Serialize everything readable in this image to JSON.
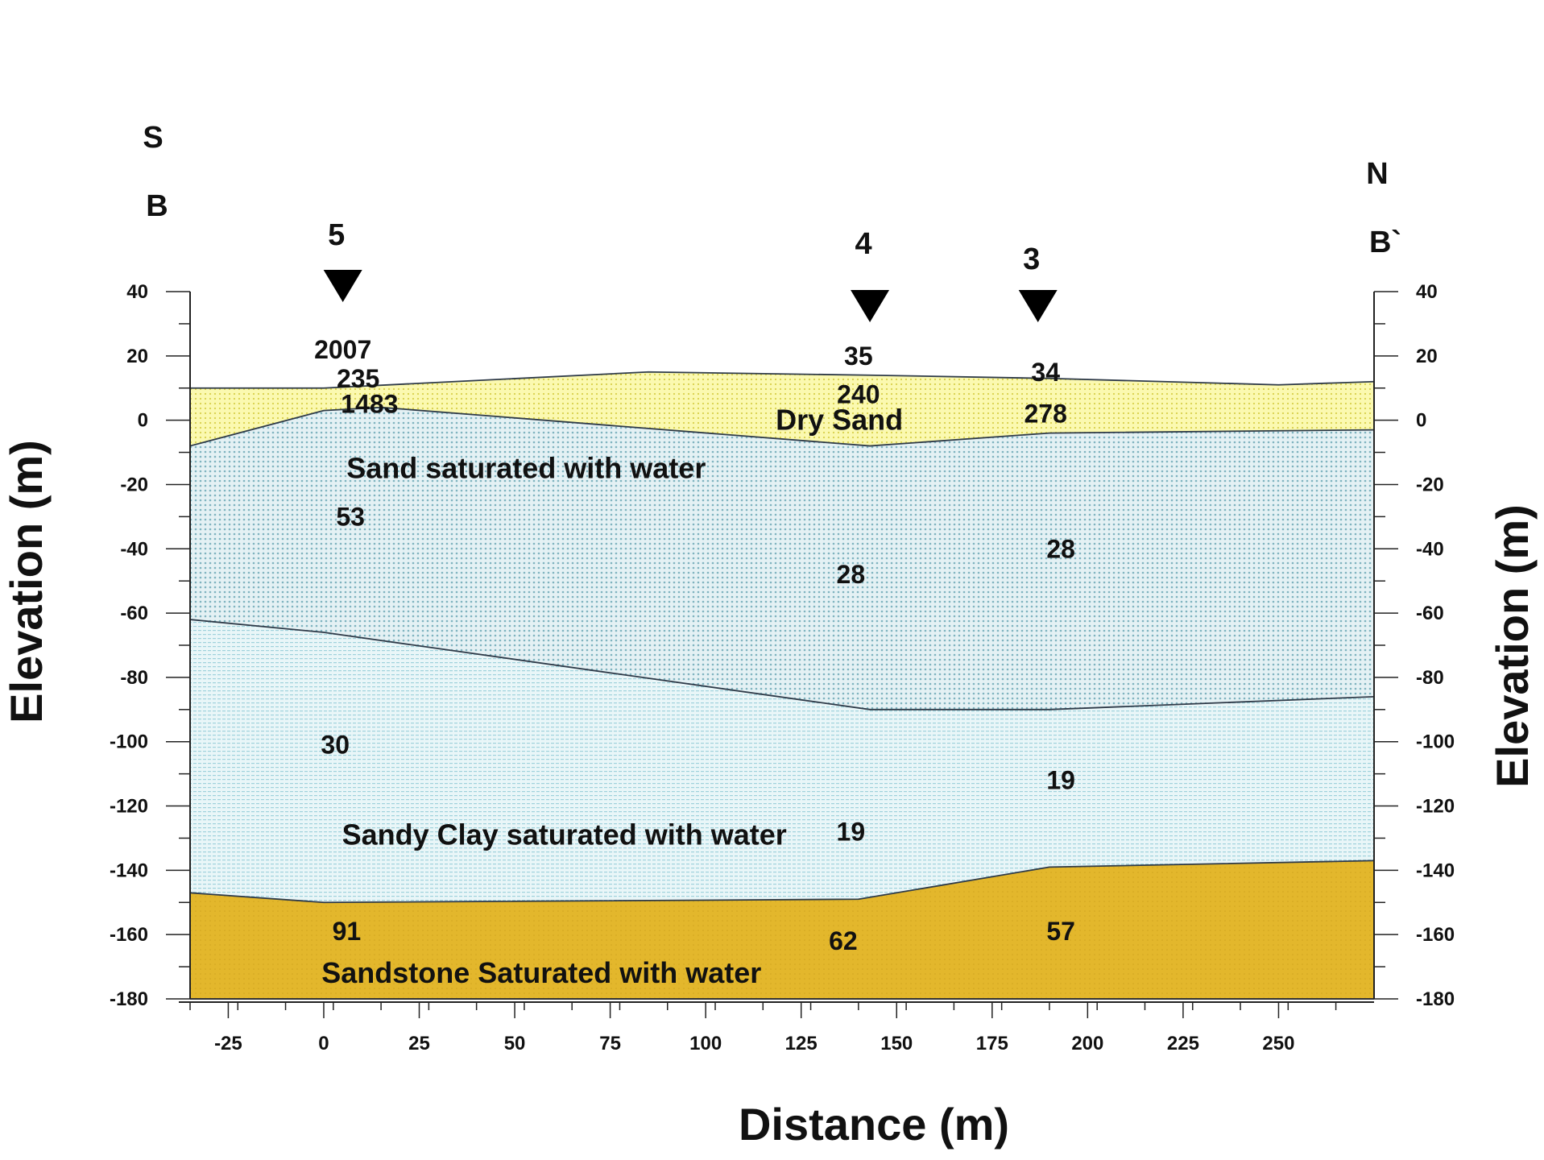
{
  "chart_data": {
    "type": "area",
    "xlabel": "Distance (m)",
    "ylabel": "Elevation (m)",
    "ylabel_right": "Elevation (m)",
    "xlim": [
      -35,
      275
    ],
    "ylim": [
      -180,
      40
    ],
    "x_ticks": [
      -25,
      0,
      25,
      50,
      75,
      100,
      125,
      150,
      175,
      200,
      225,
      250
    ],
    "y_ticks": [
      40,
      20,
      0,
      -20,
      -40,
      -60,
      -80,
      -100,
      -120,
      -140,
      -160,
      -180
    ],
    "directions": {
      "start": "S",
      "start_section": "B",
      "end": "N",
      "end_section": "B`"
    },
    "wells": [
      {
        "label": "5",
        "x": 5
      },
      {
        "label": "4",
        "x": 143
      },
      {
        "label": "3",
        "x": 187
      }
    ],
    "layers": [
      {
        "name": "Dry Sand",
        "color": "#f7f38a",
        "top": [
          [
            -35,
            10
          ],
          [
            0,
            10
          ],
          [
            85,
            15
          ],
          [
            143,
            14
          ],
          [
            190,
            13
          ],
          [
            250,
            11
          ],
          [
            275,
            12
          ]
        ],
        "bottom": [
          [
            -35,
            -8
          ],
          [
            0,
            3
          ],
          [
            15,
            4
          ],
          [
            143,
            -8
          ],
          [
            190,
            -4
          ],
          [
            275,
            -3
          ]
        ]
      },
      {
        "name": "Sand  saturated with water",
        "color": "#b7dce5",
        "top": [
          [
            -35,
            -8
          ],
          [
            0,
            3
          ],
          [
            15,
            4
          ],
          [
            143,
            -8
          ],
          [
            190,
            -4
          ],
          [
            275,
            -3
          ]
        ],
        "bottom": [
          [
            -35,
            -62
          ],
          [
            0,
            -66
          ],
          [
            143,
            -90
          ],
          [
            190,
            -90
          ],
          [
            275,
            -86
          ]
        ]
      },
      {
        "name": "Sandy Clay saturated with water",
        "color": "#d3edf0",
        "top": [
          [
            -35,
            -62
          ],
          [
            0,
            -66
          ],
          [
            143,
            -90
          ],
          [
            190,
            -90
          ],
          [
            275,
            -86
          ]
        ],
        "bottom": [
          [
            -35,
            -147
          ],
          [
            0,
            -150
          ],
          [
            140,
            -149
          ],
          [
            190,
            -139
          ],
          [
            275,
            -137
          ]
        ]
      },
      {
        "name": "Sandstone Saturated with water",
        "color": "#e3b72c",
        "top": [
          [
            -35,
            -147
          ],
          [
            0,
            -150
          ],
          [
            140,
            -149
          ],
          [
            190,
            -139
          ],
          [
            275,
            -137
          ]
        ],
        "bottom": [
          [
            -35,
            -180
          ],
          [
            275,
            -180
          ]
        ]
      }
    ],
    "layer_labels": [
      {
        "text": "Dry Sand",
        "x": 135,
        "y": 0
      },
      {
        "text": "Sand  saturated with water",
        "x": 53,
        "y": -15
      },
      {
        "text": "Sandy Clay saturated with water",
        "x": 63,
        "y": -129
      },
      {
        "text": "Sandstone Saturated with water",
        "x": 57,
        "y": -172
      }
    ],
    "values": [
      {
        "text": "2007",
        "x": 5,
        "y": 22
      },
      {
        "text": "235",
        "x": 9,
        "y": 13
      },
      {
        "text": "1483",
        "x": 12,
        "y": 5
      },
      {
        "text": "53",
        "x": 7,
        "y": -30
      },
      {
        "text": "30",
        "x": 3,
        "y": -101
      },
      {
        "text": "91",
        "x": 6,
        "y": -159
      },
      {
        "text": "35",
        "x": 140,
        "y": 20
      },
      {
        "text": "240",
        "x": 140,
        "y": 8
      },
      {
        "text": "28",
        "x": 138,
        "y": -48
      },
      {
        "text": "19",
        "x": 138,
        "y": -128
      },
      {
        "text": "62",
        "x": 136,
        "y": -162
      },
      {
        "text": "34",
        "x": 189,
        "y": 15
      },
      {
        "text": "278",
        "x": 189,
        "y": 2
      },
      {
        "text": "28",
        "x": 193,
        "y": -40
      },
      {
        "text": "19",
        "x": 193,
        "y": -112
      },
      {
        "text": "57",
        "x": 193,
        "y": -159
      }
    ]
  }
}
